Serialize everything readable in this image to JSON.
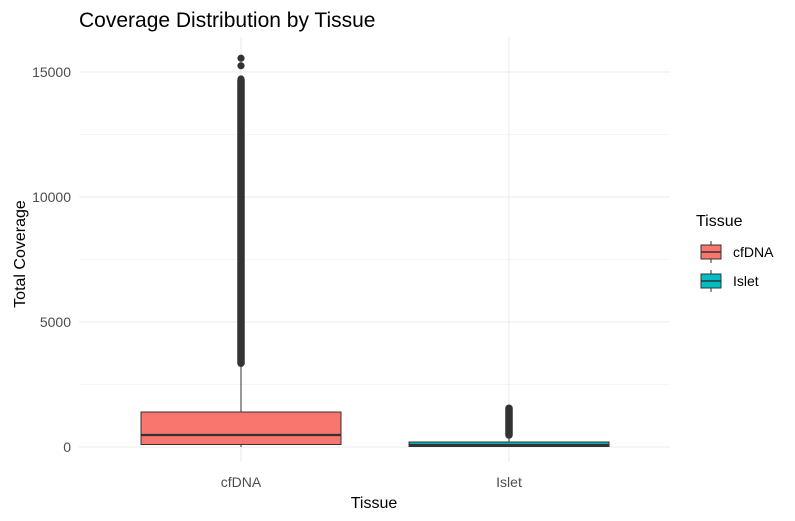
{
  "chart_data": {
    "type": "box",
    "title": "Coverage Distribution by Tissue",
    "xlabel": "Tissue",
    "ylabel": "Total Coverage",
    "categories": [
      "cfDNA",
      "Islet"
    ],
    "ylim": [
      -500,
      15700
    ],
    "yticks": [
      0,
      5000,
      10000,
      15000
    ],
    "grid": true,
    "legend": {
      "title": "Tissue",
      "position": "right",
      "entries": [
        {
          "label": "cfDNA",
          "color": "#F8766D"
        },
        {
          "label": "Islet",
          "color": "#00BFC4"
        }
      ]
    },
    "series": [
      {
        "category": "cfDNA",
        "color": "#F8766D",
        "min": 0,
        "q1": 100,
        "median": 480,
        "q3": 1400,
        "whisker_high": 3350,
        "outlier_range": [
          3350,
          14650
        ],
        "outliers_isolated": [
          14720,
          15250,
          15550
        ]
      },
      {
        "category": "Islet",
        "color": "#00BFC4",
        "min": 0,
        "q1": 20,
        "median": 80,
        "q3": 200,
        "whisker_high": 480,
        "outlier_range": [
          480,
          1550
        ],
        "outliers_isolated": []
      }
    ]
  }
}
